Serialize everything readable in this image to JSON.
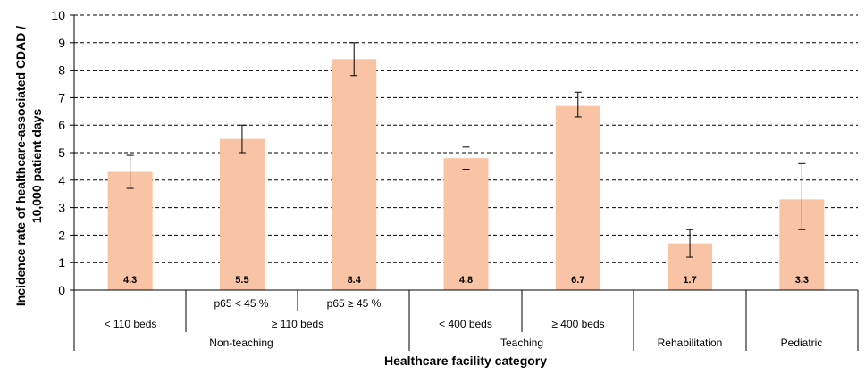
{
  "chart_data": {
    "type": "bar",
    "xlabel": "Healthcare facility category",
    "ylabel_line1": "Incidence rate of healthcare-associated CDAD /",
    "ylabel_line2": "10,000 patient days",
    "ylim": [
      0,
      10
    ],
    "yticks": [
      "0",
      "1",
      "2",
      "3",
      "4",
      "5",
      "6",
      "7",
      "8",
      "9",
      "10"
    ],
    "grid": true,
    "bar_color": "#F9C4A6",
    "values": [
      4.3,
      5.5,
      8.4,
      4.8,
      6.7,
      1.7,
      3.3
    ],
    "data_labels": [
      "4.3",
      "5.5",
      "8.4",
      "4.8",
      "6.7",
      "1.7",
      "3.3"
    ],
    "error_low": [
      3.7,
      5.0,
      7.8,
      4.4,
      6.3,
      1.2,
      2.2
    ],
    "error_high": [
      4.9,
      6.0,
      9.0,
      5.2,
      7.2,
      2.2,
      4.6
    ],
    "subcategories": {
      "p65_low": "p65 < 45 %",
      "p65_high": "p65 ≥ 45 %"
    },
    "categories": {
      "lt110": "< 110 beds",
      "ge110": "≥ 110 beds",
      "lt400": "< 400 beds",
      "ge400": "≥ 400 beds"
    },
    "groups": {
      "nonteaching": "Non-teaching",
      "teaching": "Teaching",
      "rehab": "Rehabilitation",
      "pediatric": "Pediatric"
    }
  }
}
